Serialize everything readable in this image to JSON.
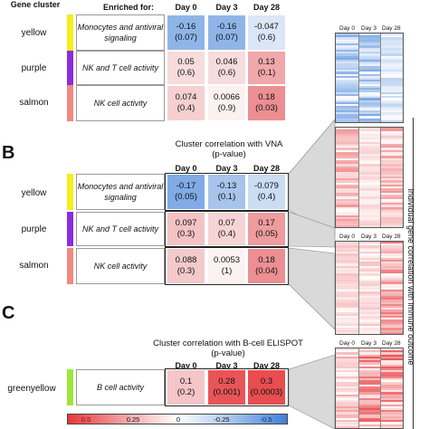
{
  "header": {
    "gene_cluster": "Gene cluster",
    "enriched_for": "Enriched for:",
    "days": [
      "Day 0",
      "Day 3",
      "Day 28"
    ]
  },
  "panels": {
    "a": {
      "rows": [
        {
          "cluster": "yellow",
          "enriched": "Monocytes and antiviral signaling",
          "cells": [
            {
              "r": "-0.16",
              "p": "(0.07)"
            },
            {
              "r": "-0.16",
              "p": "(0.07)"
            },
            {
              "r": "-0.047",
              "p": "(0.6)"
            }
          ]
        },
        {
          "cluster": "purple",
          "enriched": "NK and T cell activity",
          "cells": [
            {
              "r": "0.05",
              "p": "(0.6)"
            },
            {
              "r": "0.046",
              "p": "(0.6)"
            },
            {
              "r": "0.13",
              "p": "(0.1)"
            }
          ]
        },
        {
          "cluster": "salmon",
          "enriched": "NK cell activity",
          "cells": [
            {
              "r": "0.074",
              "p": "(0.4)"
            },
            {
              "r": "0.0066",
              "p": "(0.9)"
            },
            {
              "r": "0.18",
              "p": "(0.03)"
            }
          ]
        }
      ]
    },
    "b": {
      "letter": "B",
      "title": "Cluster correlation with VNA",
      "subtitle": "(p-value)",
      "rows": [
        {
          "cluster": "yellow",
          "enriched": "Monocytes and antiviral signaling",
          "cells": [
            {
              "r": "-0.17",
              "p": "(0.05)"
            },
            {
              "r": "-0.13",
              "p": "(0.1)"
            },
            {
              "r": "-0.079",
              "p": "(0.4)"
            }
          ]
        },
        {
          "cluster": "purple",
          "enriched": "NK and T cell activity",
          "cells": [
            {
              "r": "0.097",
              "p": "(0.3)"
            },
            {
              "r": "0.07",
              "p": "(0.4)"
            },
            {
              "r": "0.17",
              "p": "(0.05)"
            }
          ]
        },
        {
          "cluster": "salmon",
          "enriched": "NK cell activity",
          "cells": [
            {
              "r": "0.088",
              "p": "(0.3)"
            },
            {
              "r": "0.0053",
              "p": "(1)"
            },
            {
              "r": "0.18",
              "p": "(0.04)"
            }
          ]
        }
      ]
    },
    "c": {
      "letter": "C",
      "title": "Cluster correlation with B-cell ELISPOT",
      "subtitle": "(p-value)",
      "rows": [
        {
          "cluster": "greenyellow",
          "enriched": "B cell activity",
          "cells": [
            {
              "r": "0.1",
              "p": "(0.2)"
            },
            {
              "r": "0.28",
              "p": "(0.001)"
            },
            {
              "r": "0.3",
              "p": "(0.0003)"
            }
          ]
        }
      ]
    }
  },
  "colors": {
    "yellow": "#f5ee1a",
    "purple": "#8a2be2",
    "salmon": "#f08a80",
    "greenyellow": "#9fe63a",
    "neg_strong": "#3f7fd8",
    "pos_strong": "#e8383a"
  },
  "heatmaps": {
    "days": [
      "Day 0",
      "Day 3",
      "Day 28"
    ],
    "side_label": "Individual gene correlation with immune outcome"
  },
  "legend": {
    "labels": [
      "0.5",
      "0.25",
      "0",
      "-0.25",
      "-0.5"
    ]
  }
}
